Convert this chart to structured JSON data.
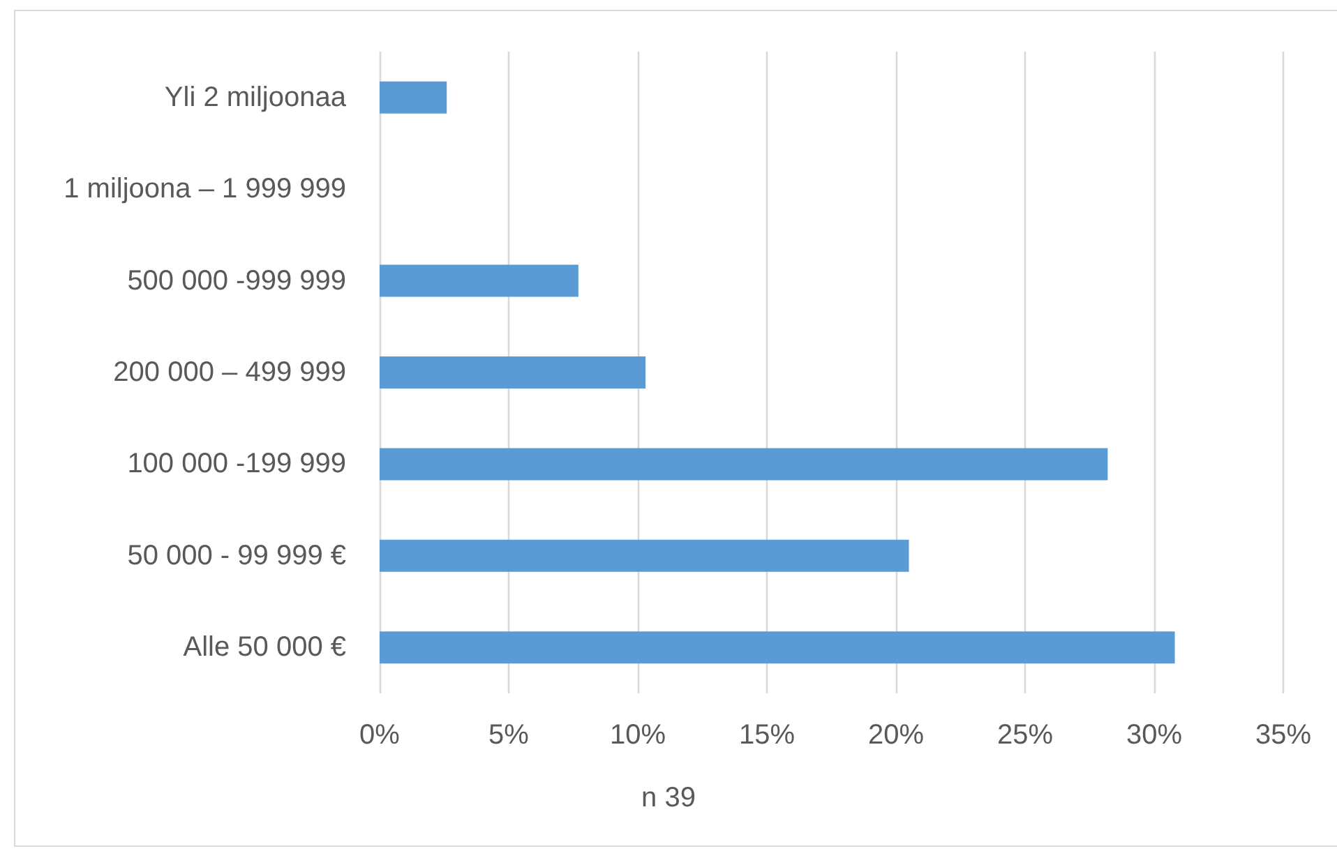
{
  "chart_data": {
    "type": "bar",
    "orientation": "horizontal",
    "categories": [
      "Yli 2 miljoonaa",
      "1 miljoona – 1 999 999",
      "500 000 -999 999",
      "200 000 – 499 999",
      "100 000 -199 999",
      "50 000 - 99 999 €",
      "Alle 50 000 €"
    ],
    "values": [
      2.6,
      0,
      7.7,
      10.3,
      28.2,
      20.5,
      30.8
    ],
    "color": "#5b9bd5",
    "xlabel": "n 39",
    "xlim": [
      0,
      35
    ],
    "xticks": [
      {
        "value": 0,
        "label": "0%"
      },
      {
        "value": 5,
        "label": "5%"
      },
      {
        "value": 10,
        "label": "10%"
      },
      {
        "value": 15,
        "label": "15%"
      },
      {
        "value": 20,
        "label": "20%"
      },
      {
        "value": 25,
        "label": "25%"
      },
      {
        "value": 30,
        "label": "30%"
      },
      {
        "value": 35,
        "label": "35%"
      }
    ],
    "grid": "x"
  }
}
